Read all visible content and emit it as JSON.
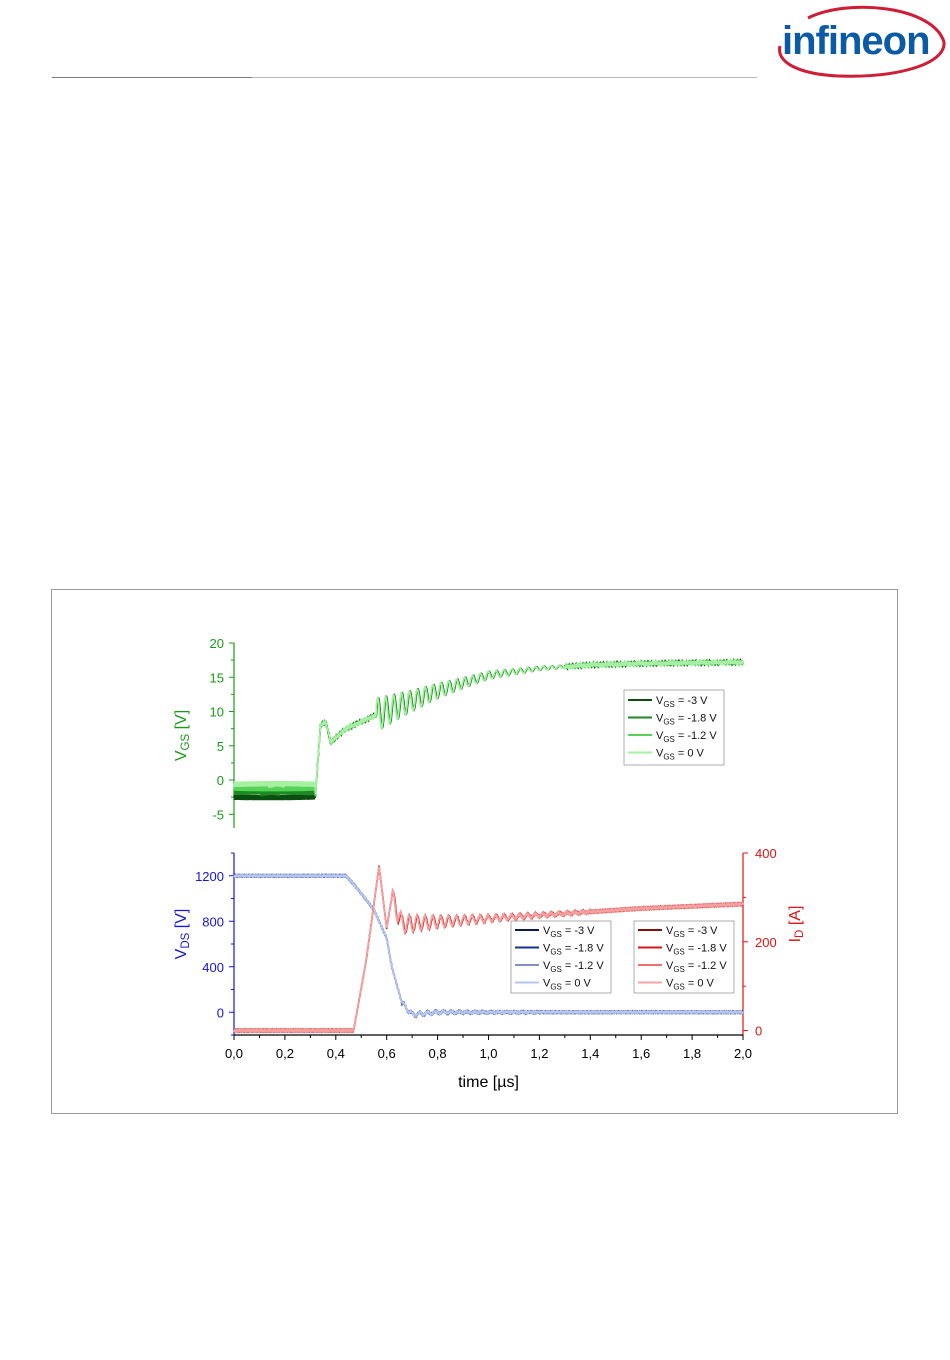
{
  "brand": {
    "name": "infineon",
    "color": "#0a5aa6",
    "arc_color": "#d01c35"
  },
  "chart_data": [
    {
      "type": "line",
      "panel": "top",
      "ylabel": "V",
      "ylabel_sub": "GS",
      "ylabel_unit": "[V]",
      "ylim": [
        -7,
        20
      ],
      "ytick_values": [
        -5,
        0,
        5,
        10,
        15,
        20
      ],
      "ytick_labels": [
        "-5",
        "0",
        "5",
        "10",
        "15",
        "20"
      ],
      "xlim": [
        0,
        2.0
      ],
      "axis_color": "#1a9a1a",
      "grid": false,
      "legend_position": "right",
      "series": [
        {
          "label_main": "V",
          "label_sub": "GS",
          "label_rest": " = -3 V",
          "color": "#0b4f10",
          "vgs_off": -3.0,
          "pre_level": -2.5
        },
        {
          "label_main": "V",
          "label_sub": "GS",
          "label_rest": " = -1.8 V",
          "color": "#1f8a23",
          "vgs_off": -1.8,
          "pre_level": -1.8
        },
        {
          "label_main": "V",
          "label_sub": "GS",
          "label_rest": " = -1.2 V",
          "color": "#54d25a",
          "vgs_off": -1.2,
          "pre_level": -1.2
        },
        {
          "label_main": "V",
          "label_sub": "GS",
          "label_rest": " = 0 V",
          "color": "#a6f0a2",
          "vgs_off": 0,
          "pre_level": -0.6
        }
      ],
      "waveform_points": [
        [
          0.0,
          -2.2
        ],
        [
          0.32,
          -2.2
        ],
        [
          0.34,
          8.0
        ],
        [
          0.36,
          8.5
        ],
        [
          0.38,
          5.5
        ],
        [
          0.44,
          7.5
        ],
        [
          0.56,
          9.5
        ],
        [
          0.66,
          11.0
        ],
        [
          0.8,
          13.0
        ],
        [
          1.0,
          15.3
        ],
        [
          1.2,
          16.3
        ],
        [
          1.4,
          16.8
        ],
        [
          1.6,
          17.0
        ],
        [
          2.0,
          17.2
        ]
      ]
    },
    {
      "type": "line",
      "panel": "bottom",
      "ylabel": "V",
      "ylabel_sub": "DS",
      "ylabel_unit": "[V]",
      "ylim": [
        -200,
        1400
      ],
      "ytick_values": [
        0,
        400,
        800,
        1200
      ],
      "ytick_labels": [
        "0",
        "400",
        "800",
        "1200"
      ],
      "y2label": "I",
      "y2label_sub": "D",
      "y2label_unit": "[A]",
      "y2lim": [
        -10,
        400
      ],
      "y2tick_values": [
        0,
        200,
        400
      ],
      "y2tick_labels": [
        "0",
        "200",
        "400"
      ],
      "xlabel": "time [µs]",
      "xlim": [
        0,
        2.0
      ],
      "xtick_values": [
        0,
        0.2,
        0.4,
        0.6,
        0.8,
        1.0,
        1.2,
        1.4,
        1.6,
        1.8,
        2.0
      ],
      "xtick_labels": [
        "0,0",
        "0,2",
        "0,4",
        "0,6",
        "0,8",
        "1,0",
        "1,2",
        "1,4",
        "1,6",
        "1,8",
        "2,0"
      ],
      "axis_color_left": "#1414e0",
      "axis_color_right": "#e01414",
      "grid": false,
      "vds_series": [
        {
          "label_main": "V",
          "label_sub": "GS",
          "label_rest": " = -3 V",
          "color": "#0a1a5a"
        },
        {
          "label_main": "V",
          "label_sub": "GS",
          "label_rest": " = -1.8 V",
          "color": "#1a2f8c"
        },
        {
          "label_main": "V",
          "label_sub": "GS",
          "label_rest": " = -1.2 V",
          "color": "#7a92c8"
        },
        {
          "label_main": "V",
          "label_sub": "GS",
          "label_rest": " = 0 V",
          "color": "#b6c6f0"
        }
      ],
      "id_series": [
        {
          "label_main": "V",
          "label_sub": "GS",
          "label_rest": " = -3 V",
          "color": "#8a0e0e"
        },
        {
          "label_main": "V",
          "label_sub": "GS",
          "label_rest": " = -1.8 V",
          "color": "#d01818"
        },
        {
          "label_main": "V",
          "label_sub": "GS",
          "label_rest": " = -1.2 V",
          "color": "#f07070"
        },
        {
          "label_main": "V",
          "label_sub": "GS",
          "label_rest": " = 0 V",
          "color": "#f6a4a4"
        }
      ],
      "vds_points": [
        [
          0.0,
          1200
        ],
        [
          0.44,
          1200
        ],
        [
          0.48,
          1100
        ],
        [
          0.55,
          900
        ],
        [
          0.6,
          650
        ],
        [
          0.62,
          400
        ],
        [
          0.66,
          80
        ],
        [
          0.7,
          -20
        ],
        [
          0.8,
          0
        ],
        [
          2.0,
          0
        ]
      ],
      "id_points": [
        [
          0.0,
          0
        ],
        [
          0.47,
          0
        ],
        [
          0.52,
          160
        ],
        [
          0.57,
          370
        ],
        [
          0.6,
          230
        ],
        [
          0.62,
          300
        ],
        [
          0.66,
          240
        ],
        [
          0.8,
          245
        ],
        [
          1.2,
          260
        ],
        [
          1.6,
          275
        ],
        [
          2.0,
          285
        ]
      ]
    }
  ]
}
